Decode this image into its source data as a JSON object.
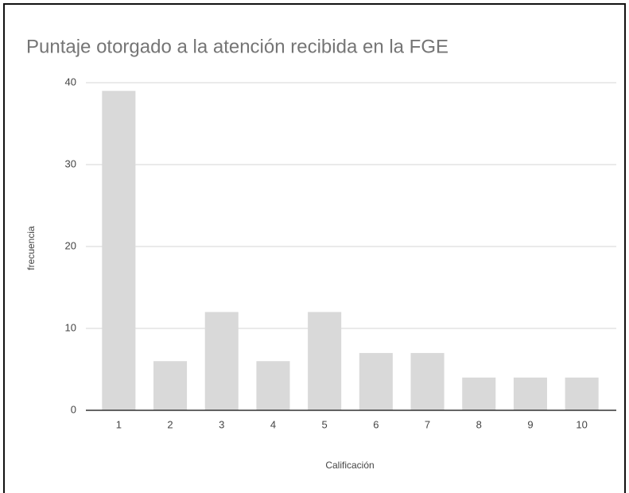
{
  "chart_data": {
    "type": "bar",
    "title": "Puntaje otorgado a la atención recibida en la FGE",
    "x_label": "Calificación",
    "y_label": "frecuencia",
    "categories": [
      "1",
      "2",
      "3",
      "4",
      "5",
      "6",
      "7",
      "8",
      "9",
      "10"
    ],
    "values": [
      39,
      6,
      12,
      6,
      12,
      7,
      7,
      4,
      4,
      4
    ],
    "color": "#d9d9d9",
    "ylim": [
      0,
      40
    ],
    "yticks": [
      0,
      10,
      20,
      30,
      40
    ],
    "grid": true
  }
}
